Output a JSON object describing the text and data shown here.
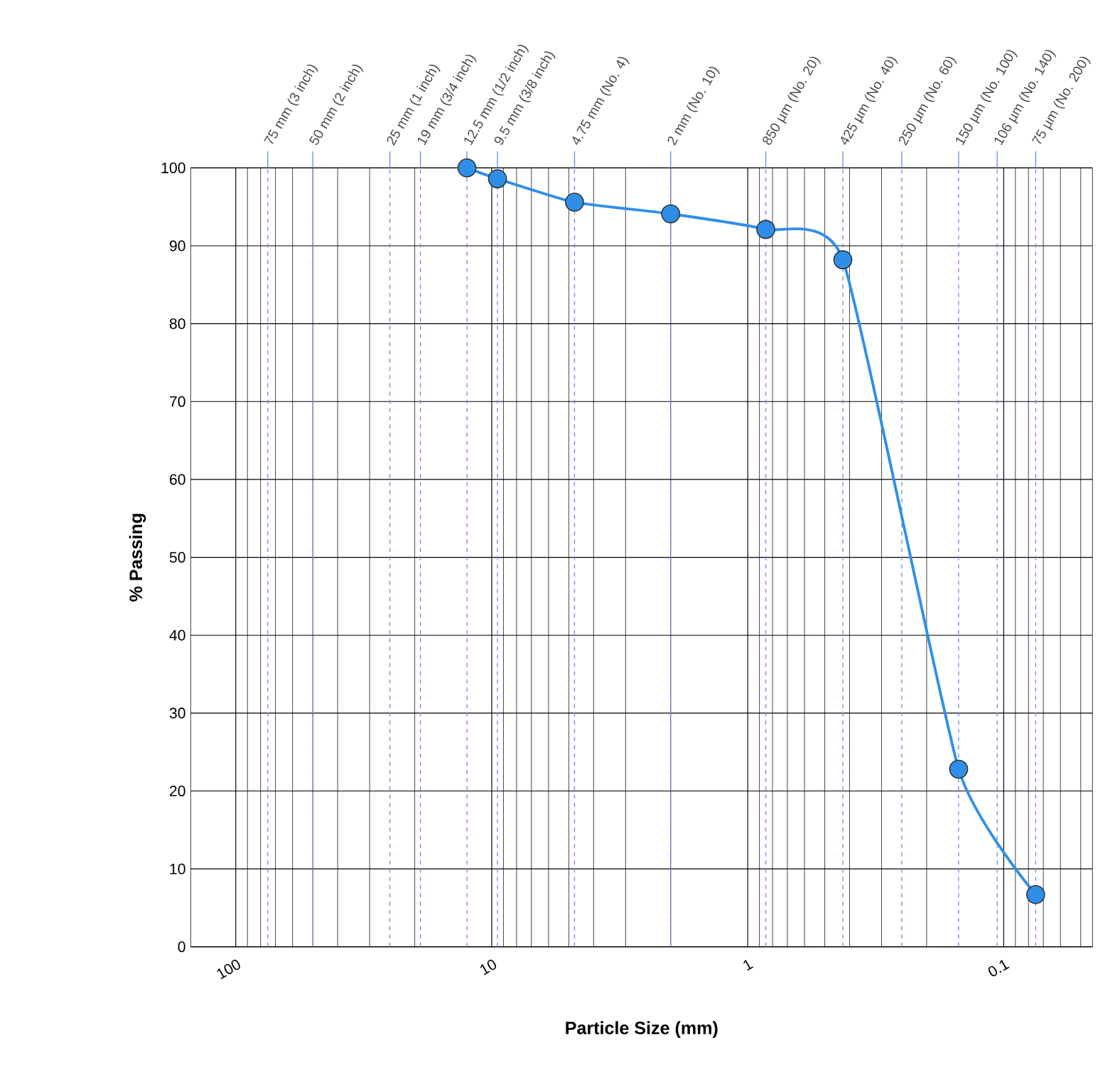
{
  "chart_data": {
    "type": "line",
    "xlabel": "Particle Size (mm)",
    "ylabel": "% Passing",
    "log": "x",
    "grid": true,
    "marker": "circle",
    "line_style": "solid",
    "xlim": [
      150,
      0.045
    ],
    "xticks": [
      100,
      10,
      1,
      0.1
    ],
    "ylim": [
      0,
      100
    ],
    "yticks": [
      0,
      10,
      20,
      30,
      40,
      50,
      60,
      70,
      80,
      90,
      100
    ],
    "series": [
      {
        "color": "#2f8fe8",
        "x": [
          12.5,
          9.5,
          4.75,
          2,
          0.85,
          0.425,
          0.15,
          0.075
        ],
        "values": [
          100,
          98.6,
          95.6,
          94.1,
          92.1,
          88.2,
          22.8,
          6.7
        ]
      }
    ],
    "ref_lines": [
      {
        "axis": "x",
        "value": 75,
        "label": "75 mm (3 inch)",
        "color": "#6f8fe6",
        "line_style": "dashed"
      },
      {
        "axis": "x",
        "value": 50,
        "label": "50 mm (2 inch)",
        "color": "#6f8fe6",
        "line_style": "dashed"
      },
      {
        "axis": "x",
        "value": 25,
        "label": "25 mm (1 inch)",
        "color": "#6f8fe6",
        "line_style": "dashed"
      },
      {
        "axis": "x",
        "value": 19,
        "label": "19 mm (3/4 inch)",
        "color": "#6f8fe6",
        "line_style": "dashed"
      },
      {
        "axis": "x",
        "value": 12.5,
        "label": "12.5 mm (1/2 inch)",
        "color": "#6f8fe6",
        "line_style": "dashed"
      },
      {
        "axis": "x",
        "value": 9.5,
        "label": "9.5 mm (3/8 inch)",
        "color": "#6f8fe6",
        "line_style": "dashed"
      },
      {
        "axis": "x",
        "value": 4.75,
        "label": "4.75 mm (No. 4)",
        "color": "#6f8fe6",
        "line_style": "dashed"
      },
      {
        "axis": "x",
        "value": 2,
        "label": "2 mm (No. 10)",
        "color": "#6f8fe6",
        "line_style": "dashed"
      },
      {
        "axis": "x",
        "value": 0.85,
        "label": "850 µm (No. 20)",
        "color": "#6f8fe6",
        "line_style": "dashed"
      },
      {
        "axis": "x",
        "value": 0.425,
        "label": "425 µm (No. 40)",
        "color": "#6f8fe6",
        "line_style": "dashed"
      },
      {
        "axis": "x",
        "value": 0.25,
        "label": "250 µm (No. 60)",
        "color": "#6f8fe6",
        "line_style": "dashed"
      },
      {
        "axis": "x",
        "value": 0.15,
        "label": "150 µm (No. 100)",
        "color": "#6f8fe6",
        "line_style": "dashed"
      },
      {
        "axis": "x",
        "value": 0.106,
        "label": "106 µm (No. 140)",
        "color": "#6f8fe6",
        "line_style": "dashed"
      },
      {
        "axis": "x",
        "value": 0.075,
        "label": "75 µm (No. 200)",
        "color": "#6f8fe6",
        "line_style": "dashed"
      }
    ]
  }
}
